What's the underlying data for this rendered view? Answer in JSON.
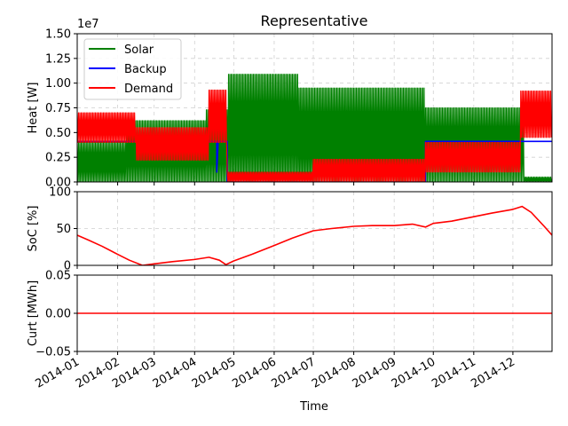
{
  "chart_data": [
    {
      "type": "line",
      "title": "Representative",
      "ylabel": "Heat [W]",
      "y_scale_label": "1e7",
      "ylim": [
        0,
        15000000
      ],
      "yticks": [
        "0.00",
        "0.25",
        "0.50",
        "0.75",
        "1.00",
        "1.25",
        "1.50"
      ],
      "grid": true,
      "legend": "top-left",
      "series": [
        {
          "name": "Solar",
          "color": "#008000",
          "style": "oscillating",
          "segments": [
            {
              "from": "2014-01-01",
              "to": "2014-02-08",
              "low": 0,
              "high": 4000000
            },
            {
              "from": "2014-02-08",
              "to": "2014-04-10",
              "low": 0,
              "high": 6200000
            },
            {
              "from": "2014-04-10",
              "to": "2014-04-27",
              "low": 0,
              "high": 7300000
            },
            {
              "from": "2014-04-27",
              "to": "2014-06-20",
              "low": 0,
              "high": 10900000
            },
            {
              "from": "2014-06-20",
              "to": "2014-09-25",
              "low": 0,
              "high": 9500000
            },
            {
              "from": "2014-09-25",
              "to": "2014-12-10",
              "low": 0,
              "high": 7500000
            },
            {
              "from": "2014-12-10",
              "to": "2014-12-31",
              "low": 0,
              "high": 500000
            }
          ]
        },
        {
          "name": "Backup",
          "color": "#0000ff",
          "style": "step",
          "points": [
            [
              "2014-01-01",
              4100000
            ],
            [
              "2014-04-18",
              4100000
            ],
            [
              "2014-04-18",
              1000000
            ],
            [
              "2014-04-19",
              4100000
            ],
            [
              "2014-04-26",
              4100000
            ],
            [
              "2014-04-26",
              0
            ],
            [
              "2014-09-25",
              0
            ],
            [
              "2014-09-25",
              4100000
            ],
            [
              "2014-12-31",
              4100000
            ]
          ]
        },
        {
          "name": "Demand",
          "color": "#ff0000",
          "style": "oscillating",
          "segments": [
            {
              "from": "2014-01-01",
              "to": "2014-02-15",
              "low": 4000000,
              "high": 7000000
            },
            {
              "from": "2014-02-15",
              "to": "2014-04-12",
              "low": 2200000,
              "high": 5500000
            },
            {
              "from": "2014-04-12",
              "to": "2014-04-26",
              "low": 4000000,
              "high": 9300000
            },
            {
              "from": "2014-04-26",
              "to": "2014-07-01",
              "low": 0,
              "high": 1000000
            },
            {
              "from": "2014-07-01",
              "to": "2014-09-25",
              "low": 0,
              "high": 2300000
            },
            {
              "from": "2014-09-25",
              "to": "2014-12-07",
              "low": 1000000,
              "high": 4000000
            },
            {
              "from": "2014-12-07",
              "to": "2014-12-31",
              "low": 4500000,
              "high": 9200000
            }
          ]
        }
      ]
    },
    {
      "type": "line",
      "ylabel": "SoC [%]",
      "ylim": [
        0,
        100
      ],
      "yticks": [
        "0",
        "50",
        "100"
      ],
      "grid": true,
      "series": [
        {
          "color": "#ff0000",
          "points": [
            [
              "2014-01-01",
              41
            ],
            [
              "2014-01-10",
              34
            ],
            [
              "2014-01-20",
              26
            ],
            [
              "2014-02-01",
              15
            ],
            [
              "2014-02-10",
              7
            ],
            [
              "2014-02-20",
              0
            ],
            [
              "2014-03-01",
              2
            ],
            [
              "2014-03-15",
              5
            ],
            [
              "2014-04-01",
              8
            ],
            [
              "2014-04-12",
              11
            ],
            [
              "2014-04-20",
              7
            ],
            [
              "2014-04-25",
              1
            ],
            [
              "2014-05-01",
              6
            ],
            [
              "2014-05-15",
              15
            ],
            [
              "2014-06-01",
              27
            ],
            [
              "2014-06-15",
              37
            ],
            [
              "2014-07-01",
              47
            ],
            [
              "2014-07-15",
              50
            ],
            [
              "2014-08-01",
              53
            ],
            [
              "2014-08-15",
              54
            ],
            [
              "2014-09-01",
              54
            ],
            [
              "2014-09-15",
              56
            ],
            [
              "2014-09-25",
              52
            ],
            [
              "2014-10-01",
              57
            ],
            [
              "2014-10-15",
              60
            ],
            [
              "2014-11-01",
              66
            ],
            [
              "2014-11-15",
              71
            ],
            [
              "2014-12-01",
              76
            ],
            [
              "2014-12-08",
              80
            ],
            [
              "2014-12-15",
              72
            ],
            [
              "2014-12-25",
              53
            ],
            [
              "2014-12-31",
              41
            ]
          ]
        }
      ]
    },
    {
      "type": "line",
      "xlabel": "Time",
      "ylabel": "Curt [MWh]",
      "ylim": [
        -0.05,
        0.05
      ],
      "yticks": [
        "−0.05",
        "0.00",
        "0.05"
      ],
      "grid": true,
      "series": [
        {
          "color": "#ff0000",
          "points": [
            [
              "2014-01-01",
              0
            ],
            [
              "2014-12-31",
              0
            ]
          ]
        }
      ]
    }
  ],
  "x_axis": {
    "xlim": [
      "2014-01-01",
      "2014-12-31"
    ],
    "ticks": [
      "2014-01",
      "2014-02",
      "2014-03",
      "2014-04",
      "2014-05",
      "2014-06",
      "2014-07",
      "2014-08",
      "2014-09",
      "2014-10",
      "2014-11",
      "2014-12"
    ]
  }
}
